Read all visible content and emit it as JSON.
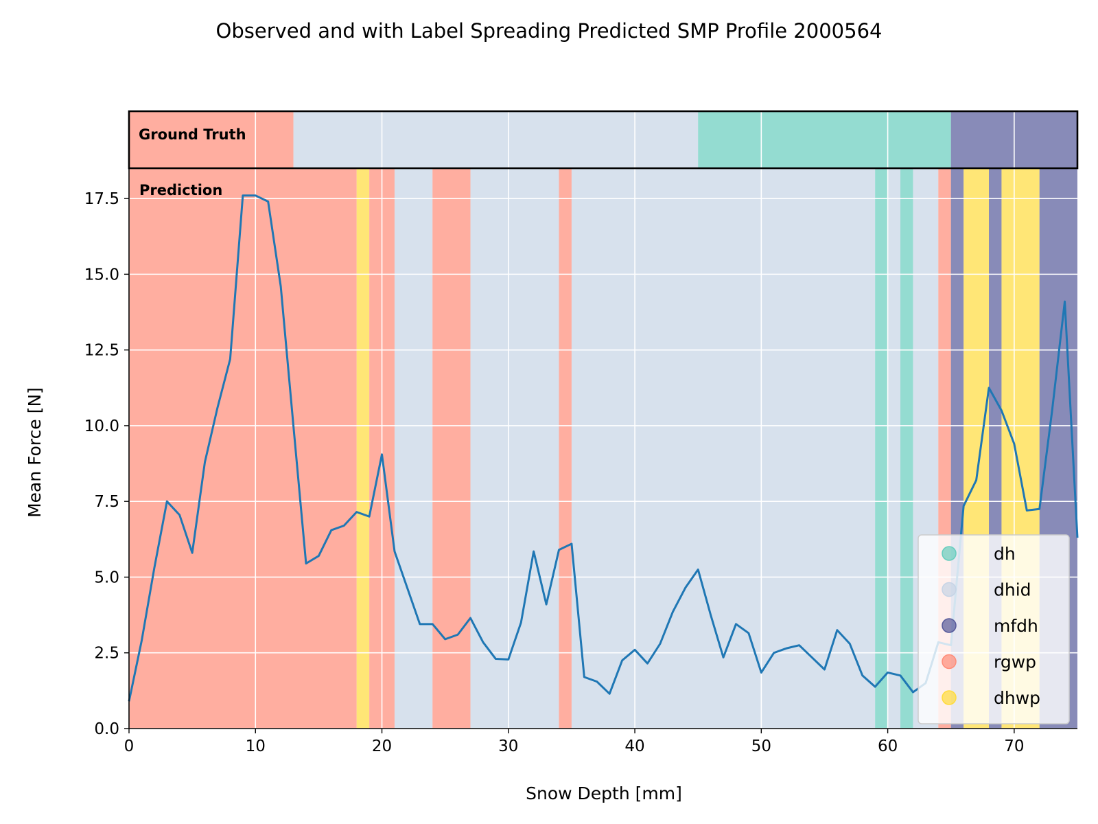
{
  "chart_data": {
    "type": "line",
    "title": "Observed and with Label Spreading Predicted SMP Profile 2000564",
    "xlabel": "Snow Depth [mm]",
    "ylabel": "Mean Force [N]",
    "xlim": [
      0,
      75
    ],
    "ylim": [
      0,
      18.5
    ],
    "xticks": [
      0,
      10,
      20,
      30,
      40,
      50,
      60,
      70
    ],
    "yticks": [
      0.0,
      2.5,
      5.0,
      7.5,
      10.0,
      12.5,
      15.0,
      17.5
    ],
    "grid": true,
    "legend_position": "lower-right",
    "series": [
      {
        "color": "#1f77b4",
        "x": [
          0,
          1,
          2,
          3,
          4,
          5,
          6,
          7,
          8,
          9,
          10,
          11,
          12,
          13,
          14,
          15,
          16,
          17,
          18,
          19,
          20,
          21,
          22,
          23,
          24,
          25,
          26,
          27,
          28,
          29,
          30,
          31,
          32,
          33,
          34,
          35,
          36,
          37,
          38,
          39,
          40,
          41,
          42,
          43,
          44,
          45,
          46,
          47,
          48,
          49,
          50,
          51,
          52,
          53,
          54,
          55,
          56,
          57,
          58,
          59,
          60,
          61,
          62,
          63,
          64,
          65,
          66,
          67,
          68,
          69,
          70,
          71,
          72,
          73,
          74,
          75
        ],
        "y": [
          0.9,
          2.9,
          5.3,
          7.5,
          7.05,
          5.8,
          8.8,
          10.6,
          12.2,
          17.6,
          17.6,
          17.4,
          14.6,
          10.0,
          5.45,
          5.7,
          6.55,
          6.7,
          7.15,
          7.0,
          9.05,
          5.85,
          4.65,
          3.45,
          3.45,
          2.95,
          3.1,
          3.65,
          2.85,
          2.3,
          2.28,
          3.5,
          5.85,
          4.1,
          5.9,
          6.1,
          1.7,
          1.55,
          1.15,
          2.25,
          2.6,
          2.15,
          2.8,
          3.85,
          4.65,
          5.25,
          3.75,
          2.35,
          3.45,
          3.15,
          1.85,
          2.5,
          2.65,
          2.75,
          2.35,
          1.95,
          3.25,
          2.8,
          1.75,
          1.38,
          1.85,
          1.75,
          1.2,
          1.5,
          2.85,
          2.75,
          7.35,
          8.2,
          11.25,
          10.5,
          9.4,
          7.2,
          7.25,
          10.5,
          14.1,
          6.3
        ]
      }
    ],
    "classes": {
      "dh": "#66CDBE",
      "dhid": "#C6D4E6",
      "mfdh": "#565A9A",
      "rgwp": "#FF8C78",
      "dhwp": "#FFDC3C"
    },
    "ground_truth_label": "Ground Truth",
    "prediction_label": "Prediction",
    "ground_truth_segments": [
      {
        "start": 0,
        "end": 13,
        "label": "rgwp"
      },
      {
        "start": 13,
        "end": 45,
        "label": "dhid"
      },
      {
        "start": 45,
        "end": 65,
        "label": "dh"
      },
      {
        "start": 65,
        "end": 75,
        "label": "mfdh"
      }
    ],
    "prediction_segments": [
      {
        "start": 0,
        "end": 18,
        "label": "rgwp"
      },
      {
        "start": 18,
        "end": 19,
        "label": "dhwp"
      },
      {
        "start": 19,
        "end": 21,
        "label": "rgwp"
      },
      {
        "start": 21,
        "end": 24,
        "label": "dhid"
      },
      {
        "start": 24,
        "end": 27,
        "label": "rgwp"
      },
      {
        "start": 27,
        "end": 34,
        "label": "dhid"
      },
      {
        "start": 34,
        "end": 35,
        "label": "rgwp"
      },
      {
        "start": 35,
        "end": 59,
        "label": "dhid"
      },
      {
        "start": 59,
        "end": 60,
        "label": "dh"
      },
      {
        "start": 60,
        "end": 61,
        "label": "dhid"
      },
      {
        "start": 61,
        "end": 62,
        "label": "dh"
      },
      {
        "start": 62,
        "end": 64,
        "label": "dhid"
      },
      {
        "start": 64,
        "end": 65,
        "label": "rgwp"
      },
      {
        "start": 65,
        "end": 66,
        "label": "mfdh"
      },
      {
        "start": 66,
        "end": 68,
        "label": "dhwp"
      },
      {
        "start": 68,
        "end": 69,
        "label": "mfdh"
      },
      {
        "start": 69,
        "end": 72,
        "label": "dhwp"
      },
      {
        "start": 72,
        "end": 75,
        "label": "mfdh"
      }
    ],
    "legend": [
      "dh",
      "dhid",
      "mfdh",
      "rgwp",
      "dhwp"
    ]
  }
}
